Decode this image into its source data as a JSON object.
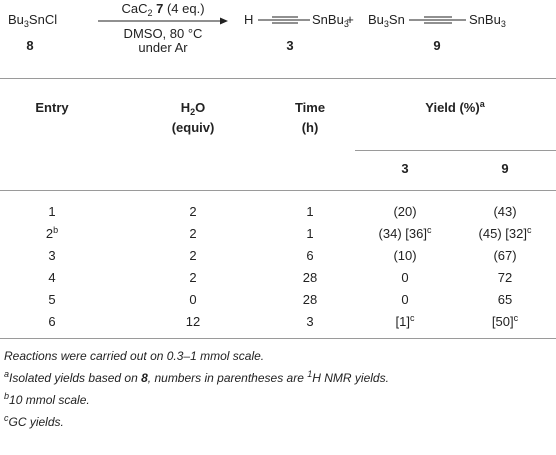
{
  "scheme": {
    "reactant": {
      "formula": [
        {
          "t": "Bu"
        },
        {
          "t": "3",
          "s": "sub"
        },
        {
          "t": "SnCl"
        }
      ],
      "label": "8"
    },
    "conditions": {
      "above": [
        {
          "t": "CaC"
        },
        {
          "t": "2",
          "s": "sub"
        },
        {
          "t": " "
        },
        {
          "t": "7",
          "s": "b"
        },
        {
          "t": " (4 eq.)"
        }
      ],
      "below": [
        "DMSO, 80 °C",
        "under Ar"
      ]
    },
    "product_1": {
      "left": "H",
      "right": [
        {
          "t": "SnBu"
        },
        {
          "t": "3",
          "s": "sub"
        }
      ],
      "label": "3"
    },
    "plus": "+",
    "product_2": {
      "left": [
        {
          "t": "Bu"
        },
        {
          "t": "3",
          "s": "sub"
        },
        {
          "t": "Sn"
        }
      ],
      "right": [
        {
          "t": "SnBu"
        },
        {
          "t": "3",
          "s": "sub"
        }
      ],
      "label": "9"
    }
  },
  "table": {
    "header": [
      [
        "Entry"
      ],
      [
        [
          {
            "t": "H"
          },
          {
            "t": "2",
            "s": "sub"
          },
          {
            "t": "O"
          }
        ],
        "(equiv)"
      ],
      [
        "Time",
        "(h)"
      ],
      [
        [
          {
            "t": "Yield (%)"
          },
          {
            "t": "a",
            "s": "sup"
          }
        ]
      ]
    ],
    "subheader": [
      "3",
      "9"
    ],
    "rows": [
      [
        "1",
        "2",
        "1",
        "(20)",
        "(43)"
      ],
      [
        [
          {
            "t": "2"
          },
          {
            "t": "b",
            "s": "sup"
          }
        ],
        "2",
        "1",
        [
          {
            "t": "(34) [36]"
          },
          {
            "t": "c",
            "s": "sup"
          }
        ],
        [
          {
            "t": "(45) [32]"
          },
          {
            "t": "c",
            "s": "sup"
          }
        ]
      ],
      [
        "3",
        "2",
        "6",
        "(10)",
        "(67)"
      ],
      [
        "4",
        "2",
        "28",
        "0",
        "72"
      ],
      [
        "5",
        "0",
        "28",
        "0",
        "65"
      ],
      [
        "6",
        "12",
        "3",
        [
          {
            "t": "[1]"
          },
          {
            "t": "c",
            "s": "sup"
          }
        ],
        [
          {
            "t": "[50]"
          },
          {
            "t": "c",
            "s": "sup"
          }
        ]
      ]
    ]
  },
  "footnotes": [
    "Reactions were carried out on 0.3–1 mmol scale.",
    [
      {
        "t": "a",
        "s": "sup"
      },
      {
        "t": "Isolated yields based on "
      },
      {
        "t": "8",
        "s": "b"
      },
      {
        "t": ", numbers in parentheses are "
      },
      {
        "t": "1",
        "s": "sup"
      },
      {
        "t": "H NMR yields."
      }
    ],
    [
      {
        "t": "b",
        "s": "sup"
      },
      {
        "t": "10 mmol scale."
      }
    ],
    [
      {
        "t": "c",
        "s": "sup"
      },
      {
        "t": "GC yields."
      }
    ]
  ]
}
